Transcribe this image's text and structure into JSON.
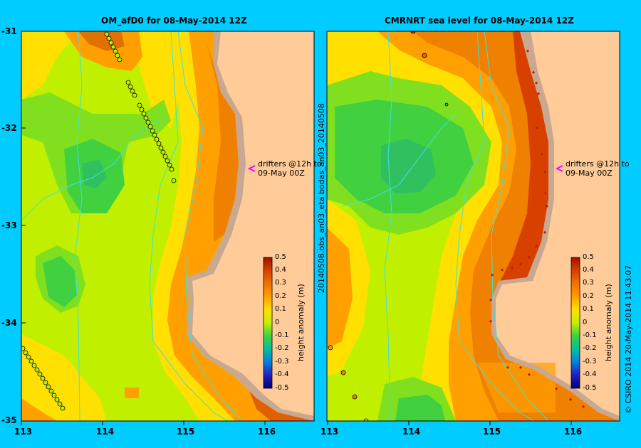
{
  "left_panel": {
    "title": "OM_afD0 for 08-May-2014 12Z",
    "annotation_line1": "drifters @12h to",
    "annotation_line2": "09-May 00Z",
    "colorbar_label": "height anomaly (m)"
  },
  "right_panel": {
    "title": "CMRNRT sea level  for 08-May-2014 12Z",
    "annotation_line1": "drifters @12h to",
    "annotation_line2": "09-May 00Z",
    "colorbar_label": "height anomaly (m)",
    "side_label": "20140508.obs_an03_eta   bodas_an03_20140508"
  },
  "footer_label": "© CSIRO 2014   20-May-2014 11:43:07",
  "axes": {
    "lat_ticks": [
      "-31",
      "-32",
      "-33",
      "-34",
      "-35"
    ],
    "lon_ticks": [
      "113",
      "114",
      "115",
      "116"
    ]
  },
  "colorbar_ticks": [
    "0.5",
    "0.4",
    "0.3",
    "0.2",
    "0.1",
    "0",
    "-0.1",
    "-0.2",
    "-0.3",
    "-0.4",
    "-0.5"
  ],
  "colors": {
    "background": "#00ccff",
    "land": "#ffcc99",
    "coast_shelf": "#c8a890",
    "isobath": "#40e0e0",
    "drifter_arrow": "#ff00ff"
  }
}
